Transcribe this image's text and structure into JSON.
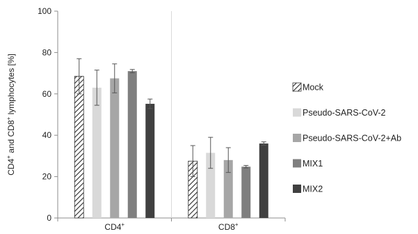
{
  "chart_data": {
    "type": "bar",
    "title": "",
    "xlabel": "",
    "ylabel": {
      "parts": [
        {
          "text": "CD4",
          "sup": false
        },
        {
          "text": "+",
          "sup": true
        },
        {
          "text": " and CD8",
          "sup": false
        },
        {
          "text": "+",
          "sup": true
        },
        {
          "text": " lymphocytes [%]",
          "sup": false
        }
      ]
    },
    "ylim": [
      0,
      100
    ],
    "yticks": [
      0,
      20,
      40,
      60,
      80,
      100
    ],
    "grid": false,
    "legend_position": "right",
    "categories": [
      {
        "base": "CD4",
        "sup": "+"
      },
      {
        "base": "CD8",
        "sup": "+"
      }
    ],
    "series": [
      {
        "name": "Mock",
        "pattern": "hatch",
        "color": "#ffffff",
        "stroke": "#333333",
        "values": [
          68.5,
          27.5
        ],
        "errors": [
          8.5,
          7.5
        ]
      },
      {
        "name": "Pseudo-SARS-CoV-2",
        "pattern": "solid",
        "color": "#d9d9d9",
        "values": [
          63.0,
          31.5
        ],
        "errors": [
          8.5,
          7.5
        ]
      },
      {
        "name": "Pseudo-SARS-CoV-2+Ab",
        "pattern": "solid",
        "color": "#a6a6a6",
        "values": [
          67.5,
          28.0
        ],
        "errors": [
          7.0,
          6.0
        ]
      },
      {
        "name": "MIX1",
        "pattern": "solid",
        "color": "#7f7f7f",
        "values": [
          71.0,
          24.8
        ],
        "errors": [
          0.8,
          0.6
        ]
      },
      {
        "name": "MIX2",
        "pattern": "solid",
        "color": "#404040",
        "values": [
          55.2,
          36.0
        ],
        "errors": [
          2.3,
          0.8
        ]
      }
    ]
  }
}
